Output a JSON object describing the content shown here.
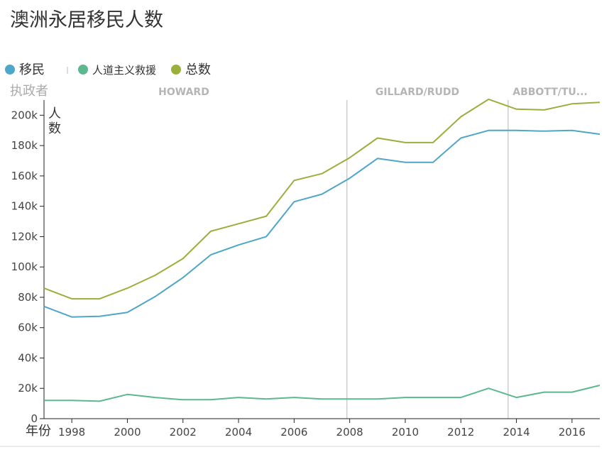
{
  "chart_data": {
    "type": "line",
    "title": "澳洲永居移民人数",
    "xlabel": "年份",
    "ylabel": "人数",
    "era_axis_label": "执政者",
    "x": [
      1997,
      1998,
      1999,
      2000,
      2001,
      2002,
      2003,
      2004,
      2005,
      2006,
      2007,
      2008,
      2009,
      2010,
      2011,
      2012,
      2013,
      2014,
      2015,
      2016,
      2017
    ],
    "xlim": [
      1997,
      2017
    ],
    "ylim": [
      0,
      210000
    ],
    "x_ticks": [
      1998,
      2000,
      2002,
      2004,
      2006,
      2008,
      2010,
      2012,
      2014,
      2016
    ],
    "x_tick_labels": [
      "1998",
      "2000",
      "2002",
      "2004",
      "2006",
      "2008",
      "2010",
      "2012",
      "2014",
      "2016"
    ],
    "y_ticks": [
      0,
      20000,
      40000,
      60000,
      80000,
      100000,
      120000,
      140000,
      160000,
      180000,
      200000
    ],
    "y_tick_labels": [
      "0",
      "20k",
      "40k",
      "60k",
      "80k",
      "100k",
      "120k",
      "140k",
      "160k",
      "180k",
      "200k"
    ],
    "series": [
      {
        "name": "移民",
        "color": "#4ea6c8",
        "values": [
          74000,
          67000,
          67500,
          70000,
          80500,
          93000,
          108000,
          114500,
          120000,
          143000,
          148000,
          158500,
          171500,
          169000,
          169000,
          185000,
          190000,
          190000,
          189500,
          190000,
          187500
        ]
      },
      {
        "name": "人道主义救援",
        "color": "#5cb88e",
        "values": [
          12000,
          12000,
          11500,
          16000,
          14000,
          12500,
          12500,
          14000,
          13000,
          14000,
          13000,
          13000,
          13000,
          14000,
          14000,
          14000,
          20000,
          14000,
          17500,
          17500,
          22000
        ]
      },
      {
        "name": "总数",
        "color": "#9aaf3c",
        "values": [
          86000,
          79000,
          79000,
          86000,
          94500,
          105500,
          123500,
          128500,
          133500,
          157000,
          161500,
          172000,
          185000,
          182000,
          182000,
          199000,
          210500,
          204000,
          203500,
          207500,
          208500
        ]
      }
    ],
    "eras": [
      {
        "label": "HOWARD",
        "start": 1996,
        "end": 2007.9
      },
      {
        "label": "GILLARD/RUDD",
        "start": 2007.9,
        "end": 2013.7
      },
      {
        "label": "ABBOTT/TU...",
        "start": 2013.7,
        "end": 2017
      }
    ],
    "era_dividers": [
      2007.9,
      2013.7
    ],
    "legend_position": "top-left",
    "grid": false
  }
}
